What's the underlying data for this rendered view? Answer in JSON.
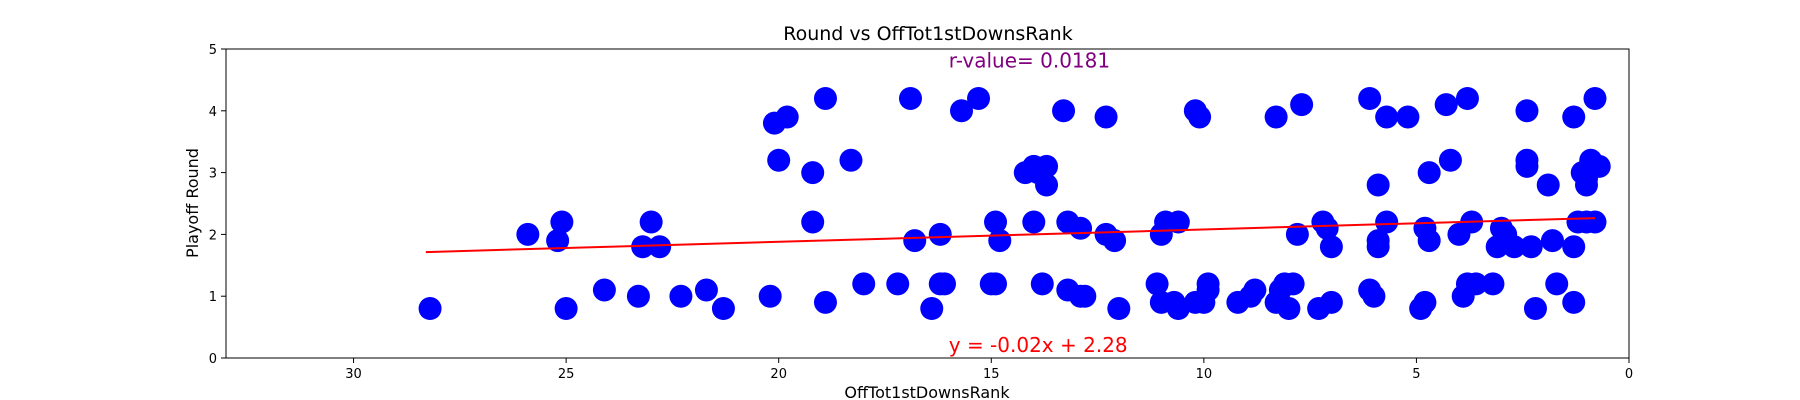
{
  "chart_data": {
    "type": "scatter",
    "title": "Round vs OffTot1stDownsRank",
    "xlabel": "OffTot1stDownsRank",
    "ylabel": "Playoff Round",
    "xlim": [
      33,
      0
    ],
    "ylim": [
      0,
      5
    ],
    "x_ticks": [
      30,
      25,
      20,
      15,
      10,
      5,
      0
    ],
    "y_ticks": [
      0,
      1,
      2,
      3,
      4,
      5
    ],
    "grid": false,
    "marker_color": "#0000ff",
    "line_color": "#ff0000",
    "regression": {
      "slope": -0.02,
      "intercept": 2.28,
      "x_range": [
        28.3,
        0.8
      ]
    },
    "annotations": [
      {
        "text": "r-value= 0.0181",
        "color": "#800080",
        "x": 16,
        "y": 4.7
      },
      {
        "text": "y = -0.02x + 2.28",
        "color": "#ff0000",
        "x": 16,
        "y": 0.1
      }
    ],
    "points": [
      [
        28.2,
        0.8
      ],
      [
        25.9,
        2.0
      ],
      [
        25.2,
        1.9
      ],
      [
        25.1,
        2.2
      ],
      [
        25.0,
        0.8
      ],
      [
        24.1,
        1.1
      ],
      [
        23.3,
        1.0
      ],
      [
        23.2,
        1.8
      ],
      [
        23.0,
        2.2
      ],
      [
        22.8,
        1.8
      ],
      [
        22.3,
        1.0
      ],
      [
        21.7,
        1.1
      ],
      [
        21.3,
        0.8
      ],
      [
        20.2,
        1.0
      ],
      [
        20.1,
        3.8
      ],
      [
        20.0,
        3.2
      ],
      [
        19.8,
        3.9
      ],
      [
        19.2,
        3.0
      ],
      [
        19.2,
        2.2
      ],
      [
        18.9,
        4.2
      ],
      [
        18.9,
        0.9
      ],
      [
        18.3,
        3.2
      ],
      [
        18.0,
        1.2
      ],
      [
        17.2,
        1.2
      ],
      [
        16.9,
        4.2
      ],
      [
        16.8,
        1.9
      ],
      [
        16.4,
        0.8
      ],
      [
        16.2,
        1.2
      ],
      [
        16.2,
        2.0
      ],
      [
        16.1,
        1.2
      ],
      [
        15.7,
        4.0
      ],
      [
        15.3,
        4.2
      ],
      [
        15.0,
        1.2
      ],
      [
        14.9,
        2.2
      ],
      [
        14.9,
        1.2
      ],
      [
        14.8,
        1.9
      ],
      [
        14.2,
        3.0
      ],
      [
        14.0,
        3.1
      ],
      [
        14.0,
        2.2
      ],
      [
        13.9,
        3.0
      ],
      [
        13.8,
        1.2
      ],
      [
        13.7,
        3.1
      ],
      [
        13.7,
        2.8
      ],
      [
        13.3,
        4.0
      ],
      [
        13.2,
        2.2
      ],
      [
        13.2,
        1.1
      ],
      [
        12.9,
        2.1
      ],
      [
        12.9,
        1.0
      ],
      [
        12.8,
        1.0
      ],
      [
        12.3,
        3.9
      ],
      [
        12.3,
        2.0
      ],
      [
        12.1,
        1.9
      ],
      [
        12.0,
        0.8
      ],
      [
        11.1,
        1.2
      ],
      [
        11.0,
        2.0
      ],
      [
        11.0,
        0.9
      ],
      [
        10.9,
        2.2
      ],
      [
        10.7,
        0.9
      ],
      [
        10.6,
        2.2
      ],
      [
        10.6,
        0.8
      ],
      [
        10.2,
        0.9
      ],
      [
        10.2,
        4.0
      ],
      [
        10.1,
        3.9
      ],
      [
        10.0,
        0.9
      ],
      [
        9.9,
        1.2
      ],
      [
        9.9,
        1.1
      ],
      [
        9.2,
        0.9
      ],
      [
        8.9,
        1.0
      ],
      [
        8.8,
        1.1
      ],
      [
        8.3,
        3.9
      ],
      [
        8.3,
        0.9
      ],
      [
        8.2,
        1.1
      ],
      [
        8.1,
        1.2
      ],
      [
        8.0,
        0.8
      ],
      [
        7.9,
        1.2
      ],
      [
        7.8,
        2.0
      ],
      [
        7.7,
        4.1
      ],
      [
        7.3,
        0.8
      ],
      [
        7.2,
        2.2
      ],
      [
        7.1,
        2.1
      ],
      [
        7.0,
        1.8
      ],
      [
        7.0,
        0.9
      ],
      [
        6.1,
        4.2
      ],
      [
        6.1,
        1.1
      ],
      [
        6.0,
        1.0
      ],
      [
        5.9,
        2.8
      ],
      [
        5.9,
        1.9
      ],
      [
        5.9,
        1.8
      ],
      [
        5.7,
        3.9
      ],
      [
        5.7,
        2.2
      ],
      [
        5.2,
        3.9
      ],
      [
        4.9,
        0.8
      ],
      [
        4.8,
        2.1
      ],
      [
        4.8,
        0.9
      ],
      [
        4.7,
        3.0
      ],
      [
        4.7,
        1.9
      ],
      [
        4.3,
        4.1
      ],
      [
        4.2,
        3.2
      ],
      [
        4.0,
        2.0
      ],
      [
        3.9,
        1.0
      ],
      [
        3.8,
        1.2
      ],
      [
        3.8,
        4.2
      ],
      [
        3.7,
        2.2
      ],
      [
        3.6,
        1.2
      ],
      [
        3.2,
        1.2
      ],
      [
        3.1,
        1.8
      ],
      [
        3.0,
        2.1
      ],
      [
        2.9,
        2.0
      ],
      [
        2.7,
        1.8
      ],
      [
        2.4,
        4.0
      ],
      [
        2.4,
        3.2
      ],
      [
        2.4,
        3.1
      ],
      [
        2.3,
        1.8
      ],
      [
        2.2,
        0.8
      ],
      [
        1.9,
        2.8
      ],
      [
        1.8,
        1.9
      ],
      [
        1.7,
        1.2
      ],
      [
        1.3,
        3.9
      ],
      [
        1.3,
        1.8
      ],
      [
        1.3,
        0.9
      ],
      [
        1.2,
        2.2
      ],
      [
        1.1,
        3.0
      ],
      [
        1.0,
        2.9
      ],
      [
        1.0,
        2.2
      ],
      [
        1.0,
        2.8
      ],
      [
        0.9,
        3.1
      ],
      [
        0.9,
        3.2
      ],
      [
        0.8,
        2.2
      ],
      [
        0.8,
        4.2
      ],
      [
        0.7,
        3.1
      ]
    ]
  }
}
